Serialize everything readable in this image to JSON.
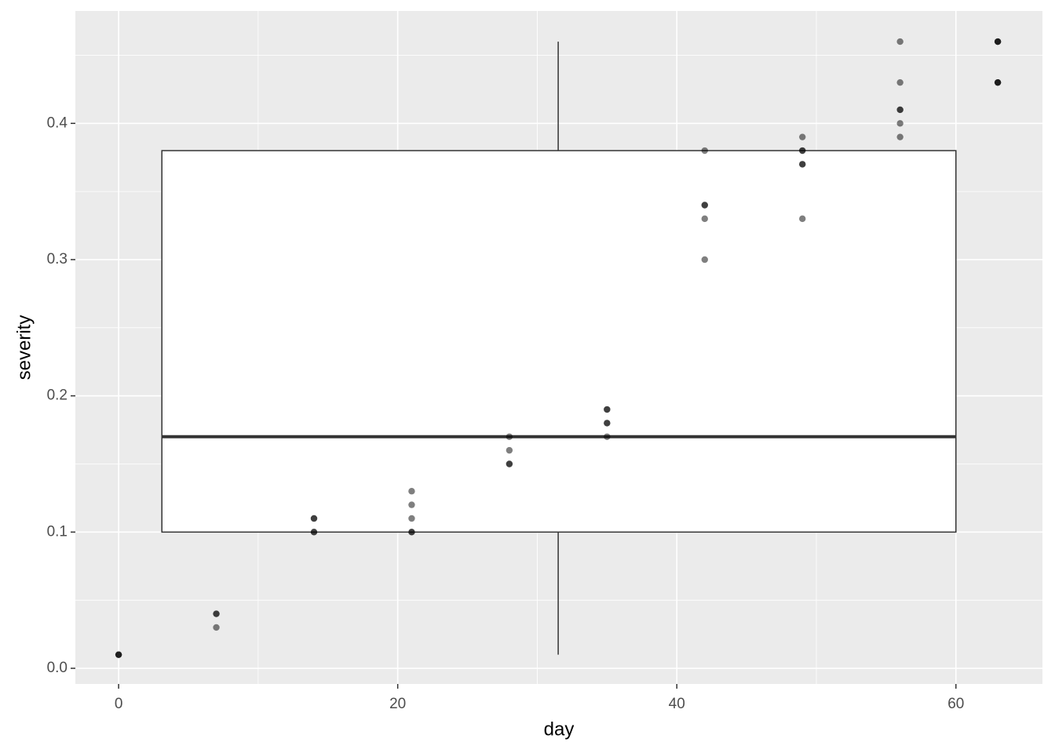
{
  "chart_data": {
    "type": "boxplot",
    "x_label": "day",
    "y_label": "severity",
    "xlim": [
      -3.1,
      66.2
    ],
    "ylim": [
      -0.0115,
      0.4825
    ],
    "xticks": [
      0,
      20,
      40,
      60
    ],
    "yticks": [
      {
        "value": 0,
        "label": "0.0"
      },
      0.1,
      0.2,
      0.3,
      0.4
    ],
    "minor_xticks": [
      10,
      30,
      50
    ],
    "minor_yticks": [
      0.05,
      0.15,
      0.25,
      0.35,
      0.45
    ],
    "grid": true,
    "box": {
      "x_range": [
        3.1,
        60
      ],
      "whisker_low": 0.01,
      "q1": 0.1,
      "median": 0.17,
      "q3": 0.38,
      "whisker_high": 0.46,
      "whisker_x": 31.5
    },
    "points": {
      "color": "#000000",
      "opacity": 0.5,
      "x": [
        0,
        0,
        0,
        7,
        7,
        7,
        14,
        14,
        14,
        14,
        21,
        21,
        21,
        21,
        21,
        28,
        28,
        28,
        28,
        35,
        35,
        35,
        35,
        35,
        42,
        42,
        42,
        42,
        42,
        49,
        49,
        49,
        49,
        49,
        49,
        56,
        56,
        56,
        56,
        56,
        56,
        63,
        63,
        63,
        63,
        63,
        63
      ],
      "y": [
        0.01,
        0.01,
        0.01,
        0.04,
        0.04,
        0.03,
        0.11,
        0.11,
        0.1,
        0.1,
        0.13,
        0.12,
        0.11,
        0.1,
        0.1,
        0.17,
        0.16,
        0.15,
        0.15,
        0.19,
        0.19,
        0.18,
        0.18,
        0.17,
        0.38,
        0.34,
        0.34,
        0.33,
        0.3,
        0.39,
        0.38,
        0.38,
        0.37,
        0.37,
        0.33,
        0.46,
        0.43,
        0.41,
        0.41,
        0.4,
        0.39,
        0.46,
        0.46,
        0.46,
        0.43,
        0.43,
        0.43
      ]
    }
  }
}
